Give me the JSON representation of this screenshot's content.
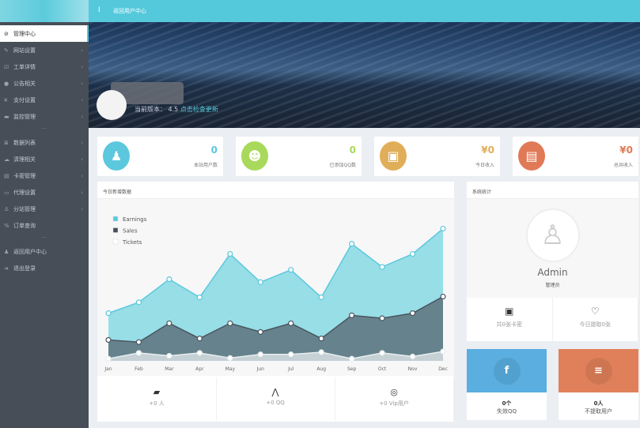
{
  "topbar": {
    "toggle": "I",
    "link": "返回用户中心",
    "color": "#55c9dc"
  },
  "sidebar": {
    "items": [
      {
        "label": "管理中心",
        "icon": "dashboard-icon",
        "glyph": "⊘",
        "active": true
      },
      {
        "label": "网站设置",
        "icon": "pencil-icon",
        "glyph": "✎",
        "arrow": true
      },
      {
        "label": "工单详情",
        "icon": "checkbox-icon",
        "glyph": "☑",
        "arrow": true
      },
      {
        "label": "公告相关",
        "icon": "info-icon",
        "glyph": "●",
        "arrow": true
      },
      {
        "label": "支付设置",
        "icon": "yen-icon",
        "glyph": "¥",
        "arrow": true
      },
      {
        "label": "监控管理",
        "icon": "monitor-icon",
        "glyph": "▬",
        "arrow": true
      },
      {
        "sep": "—"
      },
      {
        "label": "数据列表",
        "icon": "list-icon",
        "glyph": "≣",
        "arrow": true
      },
      {
        "label": "清理相关",
        "icon": "cloud-icon",
        "glyph": "☁",
        "arrow": true
      },
      {
        "label": "卡密管理",
        "icon": "card-icon",
        "glyph": "▤",
        "arrow": true
      },
      {
        "label": "代理设置",
        "icon": "server-icon",
        "glyph": "▭",
        "arrow": true
      },
      {
        "label": "分站管理",
        "icon": "sitemap-icon",
        "glyph": "♙",
        "arrow": true
      },
      {
        "label": "订单查询",
        "icon": "percent-icon",
        "glyph": "%"
      },
      {
        "sep": "—"
      },
      {
        "label": "返回用户中心",
        "icon": "user-icon",
        "glyph": "♟"
      },
      {
        "label": "退出登录",
        "icon": "logout-icon",
        "glyph": "➜"
      }
    ]
  },
  "banner": {
    "version_label": "当前版本：",
    "version": "4.5",
    "update_link": "点击检查更新"
  },
  "stats": [
    {
      "value": "0",
      "label": "本站用户数",
      "color": "#5bc8dd",
      "icon": "user-icon",
      "glyph": "♟"
    },
    {
      "value": "0",
      "label": "已添加QQ数",
      "color": "#a8d95a",
      "icon": "qq-icon",
      "glyph": "☻"
    },
    {
      "value": "¥0",
      "label": "今日收入",
      "color": "#e0ae58",
      "icon": "briefcase-icon",
      "glyph": "▣"
    },
    {
      "value": "¥0",
      "label": "总共收入",
      "color": "#e07a56",
      "icon": "wallet-icon",
      "glyph": "▤"
    }
  ],
  "chart_panel": {
    "title": "今日新增数据"
  },
  "chart_data": {
    "type": "area",
    "stacked": true,
    "categories": [
      "Jan",
      "Feb",
      "Mar",
      "Apr",
      "May",
      "Jun",
      "Jul",
      "Aug",
      "Sep",
      "Oct",
      "Nov",
      "Dec"
    ],
    "series": [
      {
        "name": "Earnings",
        "color": "#5bc8dd",
        "values": [
          37,
          55,
          61,
          57,
          96,
          69,
          74,
          57,
          99,
          71,
          82,
          94
        ]
      },
      {
        "name": "Sales",
        "color": "#474e58",
        "values": [
          26,
          15,
          45,
          20,
          48,
          31,
          43,
          19,
          60,
          48,
          60,
          76
        ]
      },
      {
        "name": "Tickets",
        "color": "#ffffff",
        "values": [
          3,
          11,
          7,
          11,
          4,
          9,
          9,
          12,
          3,
          11,
          6,
          13
        ]
      }
    ],
    "ylim": [
      0,
      200
    ],
    "legend": "top-left",
    "grid": false
  },
  "chart_footer": [
    {
      "icon": "wallet-icon",
      "glyph": "▰",
      "label": "+0 人"
    },
    {
      "icon": "fighter-icon",
      "glyph": "⋀",
      "label": "+0 QQ"
    },
    {
      "icon": "life-ring-icon",
      "glyph": "◎",
      "label": "+0 Vip用户"
    }
  ],
  "system_panel": {
    "title": "系统统计",
    "name": "Admin",
    "role": "管理员",
    "cells": [
      {
        "icon": "briefcase-icon",
        "glyph": "▣",
        "label": "共0张卡密"
      },
      {
        "icon": "heart-icon",
        "glyph": "♡",
        "label": "今日提取0张"
      }
    ]
  },
  "small_cards": [
    {
      "color": "#5aaee0",
      "icon": "facebook-icon",
      "glyph": "f",
      "value": "0个",
      "label": "失效QQ"
    },
    {
      "color": "#e0805a",
      "icon": "database-icon",
      "glyph": "≡",
      "value": "0人",
      "label": "不提取用户"
    }
  ]
}
